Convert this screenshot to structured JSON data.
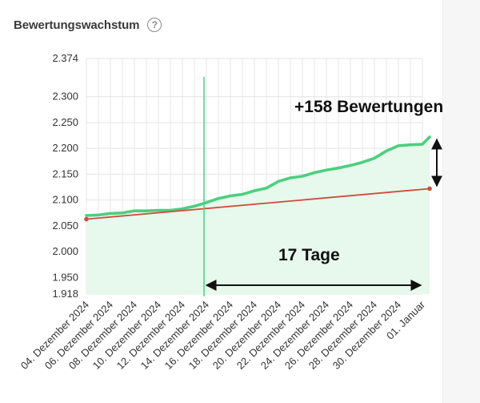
{
  "header": {
    "title": "Bewertungswachstum",
    "help_icon": "question-circle-icon",
    "help_glyph": "?"
  },
  "chart_data": {
    "type": "area",
    "title": "Bewertungswachstum",
    "xlabel": "",
    "ylabel": "",
    "ylim": [
      1918,
      2374
    ],
    "y_ticks": [
      1918,
      1950,
      2000,
      2050,
      2100,
      2150,
      2200,
      2250,
      2300,
      2374
    ],
    "y_tick_labels": [
      "1.918",
      "1.950",
      "2.000",
      "2.050",
      "2.100",
      "2.150",
      "2.200",
      "2.250",
      "2.300",
      "2.374"
    ],
    "x_tick_labels": [
      "04. Dezember 2024",
      "06. Dezember 2024",
      "08. Dezember 2024",
      "10. Dezember 2024",
      "12. Dezember 2024",
      "14. Dezember 2024",
      "16. Dezember 2024",
      "18. Dezember 2024",
      "20. Dezember 2024",
      "22. Dezember 2024",
      "24. Dezember 2024",
      "26. Dezember 2024",
      "28. Dezember 2024",
      "30. Dezember 2024",
      "01. Januar"
    ],
    "grid": true,
    "series": [
      {
        "name": "",
        "color": "#4ccf7f",
        "fill": "#e7f8ec",
        "x": [
          0,
          0.5,
          1,
          1.5,
          2,
          2.5,
          3,
          3.5,
          4,
          4.5,
          5,
          5.5,
          6,
          6.5,
          7,
          7.5,
          8,
          8.5,
          9,
          9.5,
          10,
          10.5,
          11,
          11.5,
          12,
          12.5,
          13,
          13.5,
          14,
          14.3
        ],
        "values": [
          2070,
          2071,
          2074,
          2075,
          2079,
          2079,
          2080,
          2080,
          2083,
          2088,
          2095,
          2103,
          2108,
          2111,
          2118,
          2123,
          2136,
          2143,
          2146,
          2153,
          2158,
          2162,
          2167,
          2173,
          2181,
          2195,
          2205,
          2207,
          2208,
          2222
        ]
      },
      {
        "name": "",
        "color": "#d54a3a",
        "x": [
          0,
          14.3
        ],
        "values": [
          2063,
          2122
        ]
      }
    ],
    "marker_x": 4.9,
    "annotations": {
      "gain_label": "+158 Bewertungen",
      "span_label": "17 Tage"
    }
  }
}
